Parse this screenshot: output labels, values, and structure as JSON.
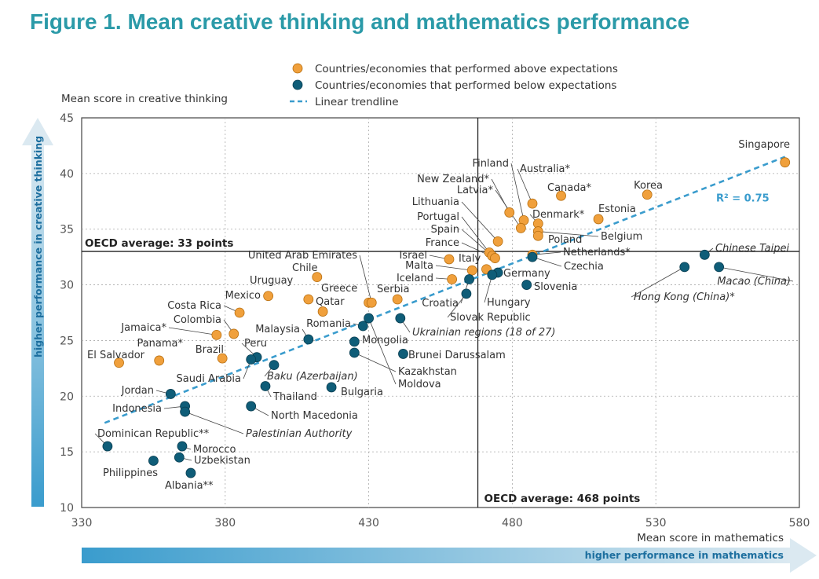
{
  "title": "Figure 1. Mean creative thinking and mathematics performance",
  "legend": {
    "above": "Countries/economies that performed above expectations",
    "below": "Countries/economies that performed below expectations",
    "trend": "Linear trendline"
  },
  "colors": {
    "above": "#f0a03c",
    "below": "#0f5d78",
    "trend": "#3a9ccd",
    "title": "#2b9aa8"
  },
  "arrows": {
    "y": "higher performance in creative thinking",
    "x": "higher performance in mathematics"
  },
  "chart_data": {
    "type": "scatter",
    "title": "Figure 1. Mean creative thinking and mathematics performance",
    "xlabel": "Mean score in mathematics",
    "ylabel": "Mean score in creative thinking",
    "xlim": [
      330,
      580
    ],
    "ylim": [
      10,
      45
    ],
    "xticks": [
      330,
      380,
      430,
      480,
      530,
      580
    ],
    "yticks": [
      10,
      15,
      20,
      25,
      30,
      35,
      40,
      45
    ],
    "grid": true,
    "legend_position": "top",
    "reference_lines": {
      "oecd_math": {
        "value": 468,
        "label": "OECD average: 468 points"
      },
      "oecd_ct": {
        "value": 33,
        "label": "OECD average: 33 points"
      }
    },
    "trendline": {
      "x": [
        338,
        575
      ],
      "y": [
        17.6,
        41.5
      ],
      "label": "R² = 0.75"
    },
    "series": [
      {
        "name": "Countries/economies that performed above expectations",
        "points": [
          {
            "label": "Singapore",
            "x": 575,
            "y": 41
          },
          {
            "label": "Korea",
            "x": 527,
            "y": 38.1
          },
          {
            "label": "Canada*",
            "x": 497,
            "y": 38
          },
          {
            "label": "Australia*",
            "x": 487,
            "y": 37.3
          },
          {
            "label": "Finland",
            "x": 484,
            "y": 35.8
          },
          {
            "label": "New Zealand*",
            "x": 479,
            "y": 36.5
          },
          {
            "label": "Latvia*",
            "x": 483,
            "y": 35.1
          },
          {
            "label": "Estonia",
            "x": 510,
            "y": 35.9
          },
          {
            "label": "Denmark*",
            "x": 489,
            "y": 35.5
          },
          {
            "label": "Belgium",
            "x": 489,
            "y": 34.8
          },
          {
            "label": "Poland",
            "x": 489,
            "y": 34.4
          },
          {
            "label": "Lithuania",
            "x": 475,
            "y": 33.9
          },
          {
            "label": "Portugal",
            "x": 472,
            "y": 32.9
          },
          {
            "label": "Spain",
            "x": 473,
            "y": 32.6
          },
          {
            "label": "France",
            "x": 474,
            "y": 32.4
          },
          {
            "label": "Italy",
            "x": 471,
            "y": 31.4
          },
          {
            "label": "Netherlands*",
            "x": 487,
            "y": 32.7
          },
          {
            "label": "Israel",
            "x": 458,
            "y": 32.3
          },
          {
            "label": "Malta",
            "x": 466,
            "y": 31.3
          },
          {
            "label": "Iceland",
            "x": 459,
            "y": 30.5
          },
          {
            "label": "Serbia",
            "x": 440,
            "y": 28.7
          },
          {
            "label": "Chile",
            "x": 412,
            "y": 30.7
          },
          {
            "label": "Uruguay",
            "x": 409,
            "y": 28.7
          },
          {
            "label": "Greece",
            "x": 430,
            "y": 28.4
          },
          {
            "label": "Qatar",
            "x": 414,
            "y": 27.6
          },
          {
            "label": "United Arab Emirates",
            "x": 431,
            "y": 28.4
          },
          {
            "label": "Mexico",
            "x": 395,
            "y": 29
          },
          {
            "label": "Costa Rica",
            "x": 385,
            "y": 27.5
          },
          {
            "label": "Colombia",
            "x": 383,
            "y": 25.6
          },
          {
            "label": "Jamaica*",
            "x": 377,
            "y": 25.5
          },
          {
            "label": "Panama*",
            "x": 357,
            "y": 23.2
          },
          {
            "label": "Brazil",
            "x": 379,
            "y": 23.4
          },
          {
            "label": "El Salvador",
            "x": 343,
            "y": 23
          }
        ]
      },
      {
        "name": "Countries/economies that performed below expectations",
        "points": [
          {
            "label": "Chinese Taipei",
            "x": 547,
            "y": 32.7
          },
          {
            "label": "Macao (China)",
            "x": 552,
            "y": 31.6
          },
          {
            "label": "Hong Kong (China)*",
            "x": 540,
            "y": 31.6
          },
          {
            "label": "Czechia",
            "x": 487,
            "y": 32.5
          },
          {
            "label": "Slovenia",
            "x": 485,
            "y": 30
          },
          {
            "label": "Germany",
            "x": 475,
            "y": 31.1
          },
          {
            "label": "Hungary",
            "x": 473,
            "y": 30.9
          },
          {
            "label": "Croatia",
            "x": 465,
            "y": 30.5
          },
          {
            "label": "Slovak Republic",
            "x": 464,
            "y": 29.2
          },
          {
            "label": "Ukrainian regions (18 of 27)",
            "x": 441,
            "y": 27
          },
          {
            "label": "Romania",
            "x": 428,
            "y": 26.3
          },
          {
            "label": "Mongolia",
            "x": 425,
            "y": 24.9
          },
          {
            "label": "Brunei Darussalam",
            "x": 442,
            "y": 23.8
          },
          {
            "label": "Kazakhstan",
            "x": 425,
            "y": 23.9
          },
          {
            "label": "Moldova",
            "x": 430,
            "y": 27
          },
          {
            "label": "Malaysia",
            "x": 409,
            "y": 25.1
          },
          {
            "label": "Peru",
            "x": 391,
            "y": 23.5
          },
          {
            "label": "Saudi Arabia",
            "x": 389,
            "y": 23.3
          },
          {
            "label": "Baku (Azerbaijan)",
            "x": 397,
            "y": 22.8
          },
          {
            "label": "Bulgaria",
            "x": 417,
            "y": 20.8
          },
          {
            "label": "Thailand",
            "x": 394,
            "y": 20.9
          },
          {
            "label": "North Macedonia",
            "x": 389,
            "y": 19.1
          },
          {
            "label": "Jordan",
            "x": 361,
            "y": 20.2
          },
          {
            "label": "Indonesia",
            "x": 366,
            "y": 19.1
          },
          {
            "label": "Palestinian Authority",
            "x": 366,
            "y": 18.6
          },
          {
            "label": "Dominican Republic**",
            "x": 339,
            "y": 15.5
          },
          {
            "label": "Morocco",
            "x": 365,
            "y": 15.5
          },
          {
            "label": "Uzbekistan",
            "x": 364,
            "y": 14.5
          },
          {
            "label": "Philippines",
            "x": 355,
            "y": 14.2
          },
          {
            "label": "Albania**",
            "x": 368,
            "y": 13.1
          }
        ]
      }
    ]
  }
}
